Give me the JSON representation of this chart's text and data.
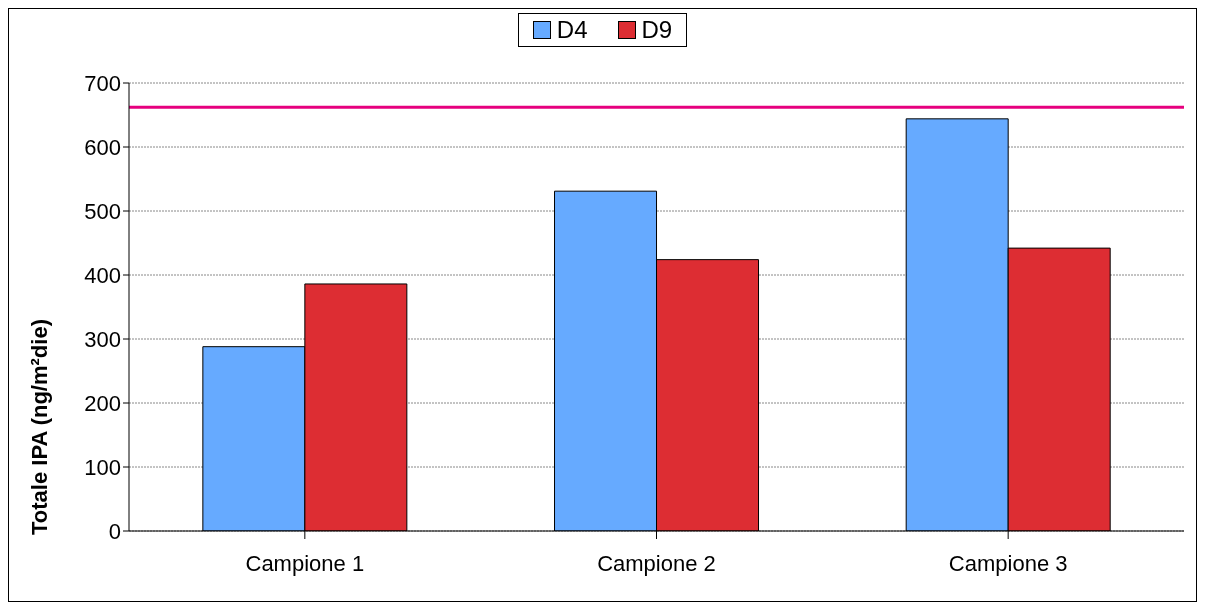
{
  "chart_data": {
    "type": "bar",
    "ylabel": "Totale IPA (ng/m²die)",
    "categories": [
      "Campione 1",
      "Campione 2",
      "Campione 3"
    ],
    "series": [
      {
        "name": "D4",
        "color": "#66aaff",
        "values": [
          288,
          531,
          644
        ]
      },
      {
        "name": "D9",
        "color": "#dd2d33",
        "values": [
          386,
          424,
          442
        ]
      }
    ],
    "ylim": [
      0,
      700
    ],
    "yticks": [
      0,
      100,
      200,
      300,
      400,
      500,
      600,
      700
    ],
    "grid": "y",
    "legend": "top",
    "ref_lines": [
      {
        "axis": "y",
        "value": 662,
        "color": "#e6007e"
      }
    ]
  }
}
